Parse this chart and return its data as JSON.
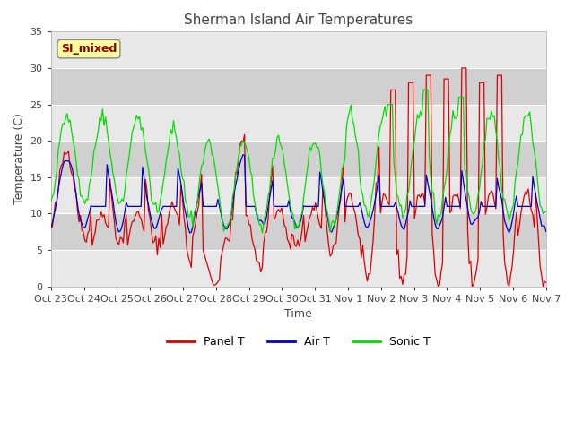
{
  "title": "Sherman Island Air Temperatures",
  "xlabel": "Time",
  "ylabel": "Temperature (C)",
  "ylim": [
    0,
    35
  ],
  "yticks": [
    0,
    5,
    10,
    15,
    20,
    25,
    30,
    35
  ],
  "x_labels": [
    "Oct 23",
    "Oct 24",
    "Oct 25",
    "Oct 26",
    "Oct 27",
    "Oct 28",
    "Oct 29",
    "Oct 30",
    "Oct 31",
    "Nov 1",
    "Nov 2",
    "Nov 3",
    "Nov 4",
    "Nov 5",
    "Nov 6",
    "Nov 7"
  ],
  "panel_t_color": "#dd0000",
  "air_t_color": "#0000cc",
  "sonic_t_color": "#00dd00",
  "plot_bg_light": "#e8e8e8",
  "plot_bg_dark": "#d0d0d0",
  "annotation_text": "SI_mixed",
  "annotation_color": "#8b0000",
  "annotation_bg": "#ffff99",
  "legend_labels": [
    "Panel T",
    "Air T",
    "Sonic T"
  ],
  "num_points": 336,
  "seed": 42
}
